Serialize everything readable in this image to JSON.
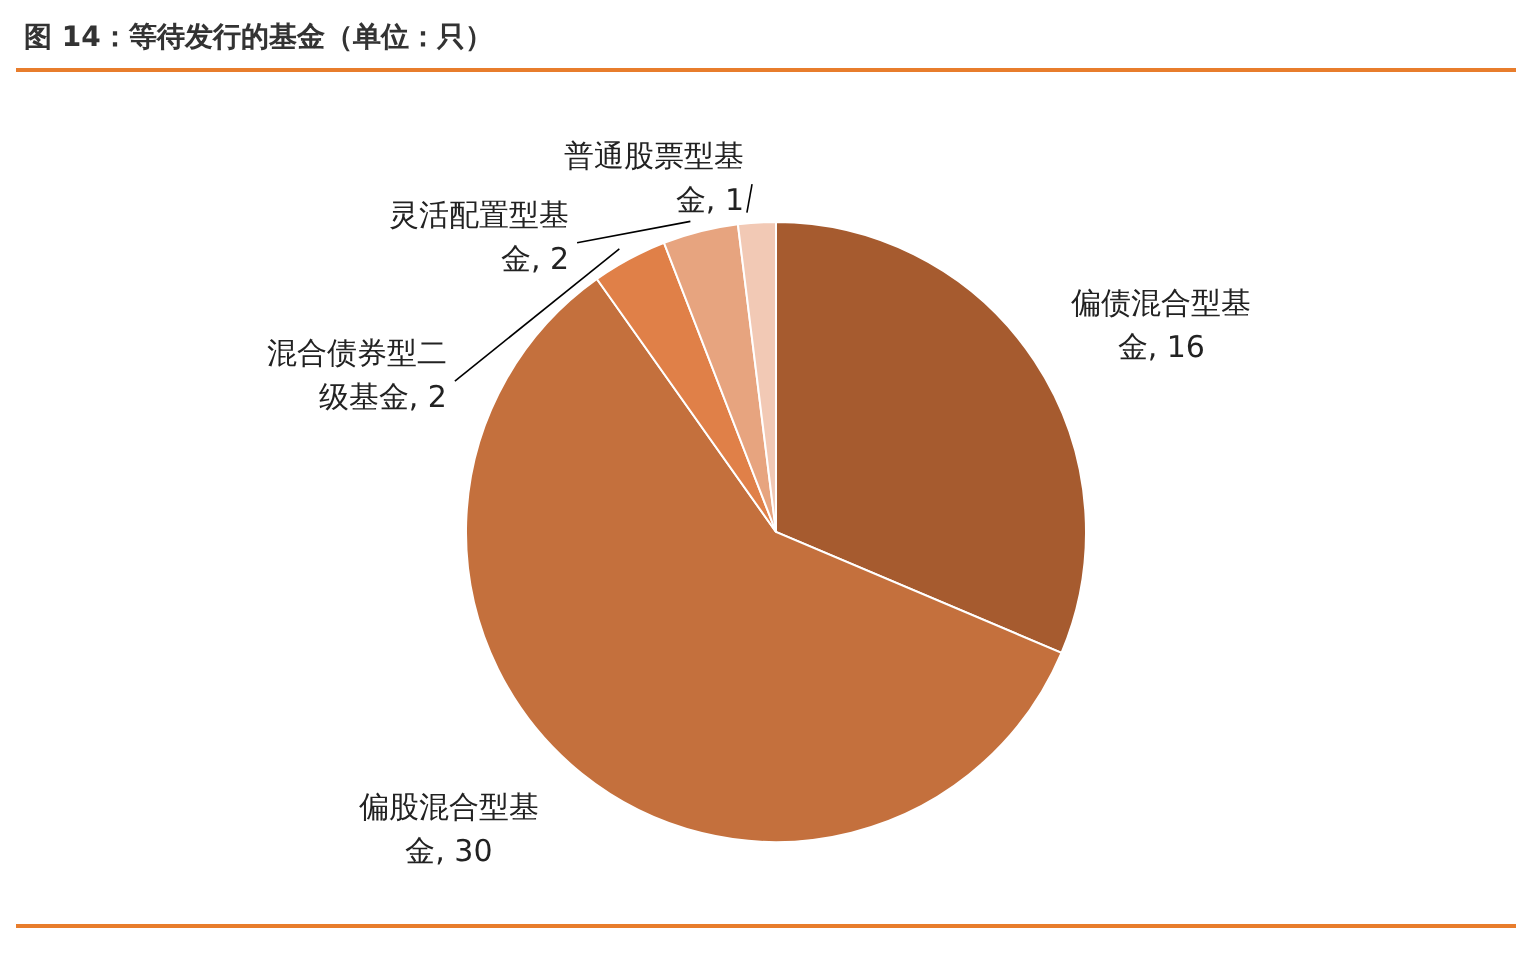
{
  "chart_data": {
    "type": "pie",
    "title": "图 14：等待发行的基金（单位：只）",
    "categories": [
      "偏债混合型基金",
      "偏股混合型基金",
      "混合债券型二级基金",
      "灵活配置型基金",
      "普通股票型基金"
    ],
    "values": [
      16,
      30,
      2,
      2,
      1
    ],
    "colors": [
      "#a65b2f",
      "#c4703d",
      "#e08048",
      "#e7a47f",
      "#f2c9b5"
    ],
    "value_labels": [
      ", 16",
      ", 30",
      ", 2",
      ", 2",
      ", 1"
    ],
    "legend": false
  }
}
